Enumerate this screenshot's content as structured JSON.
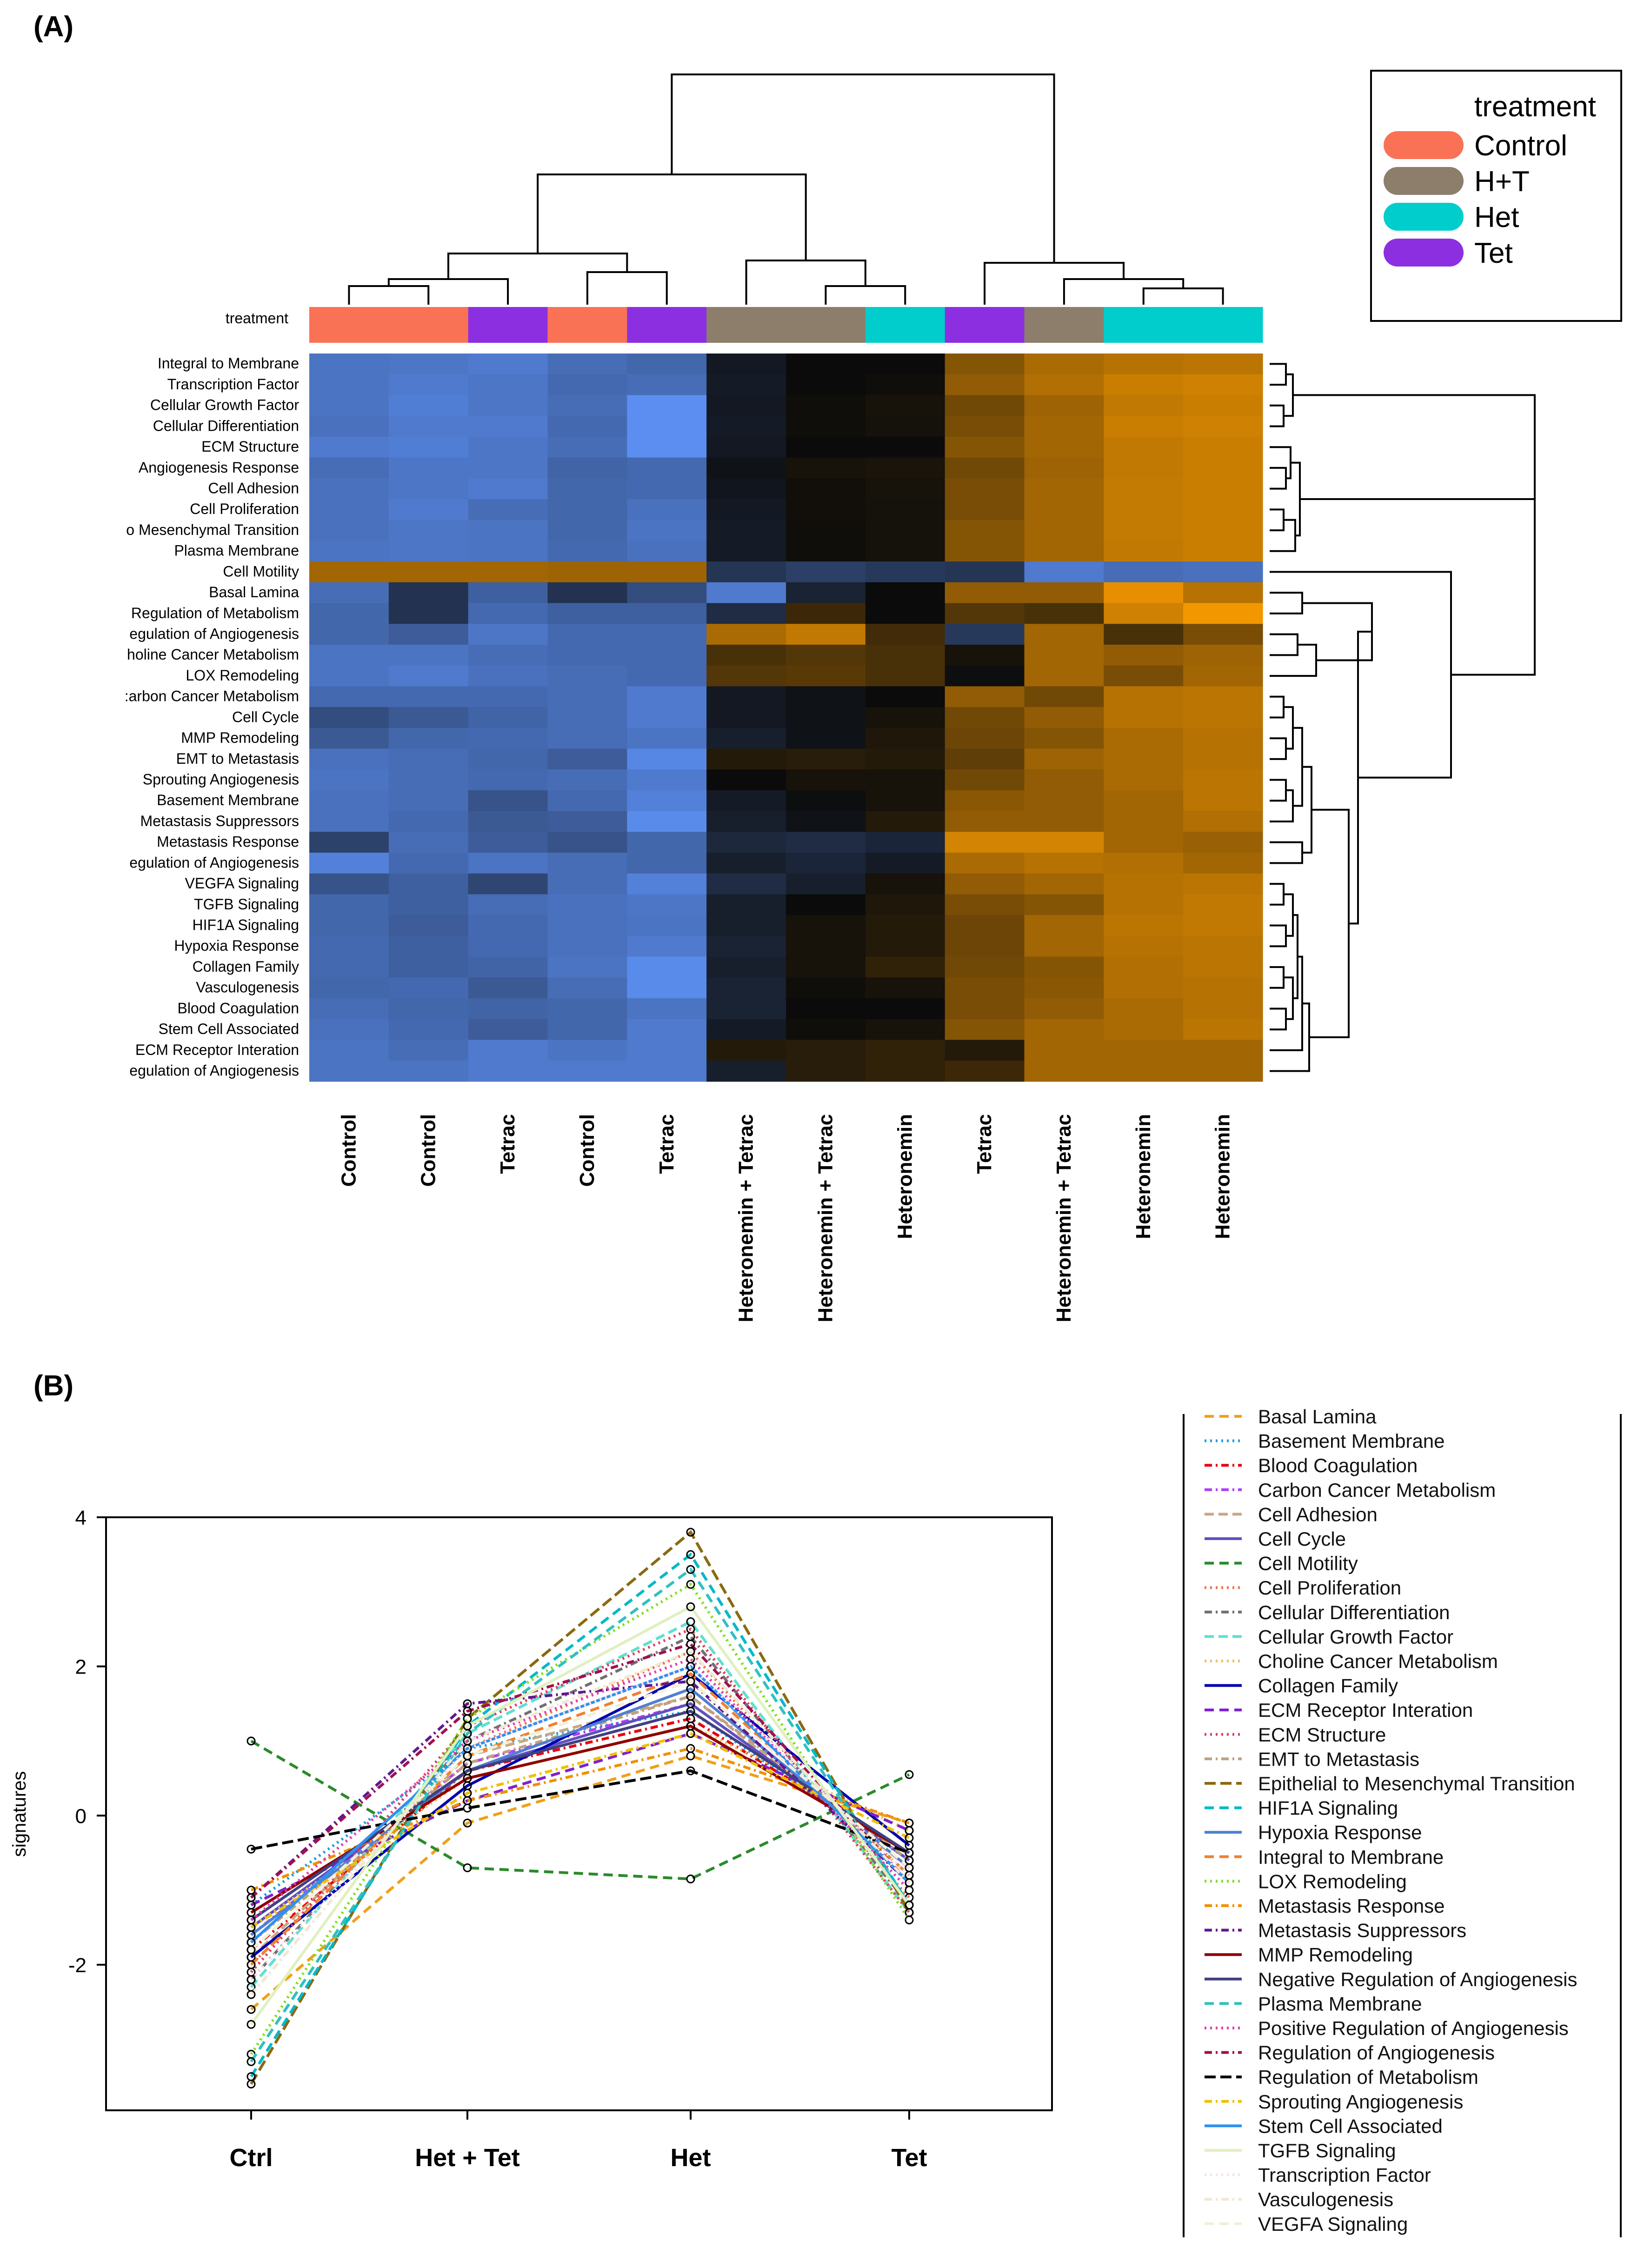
{
  "panels": {
    "a": "(A)",
    "b": "(B)"
  },
  "colors": {
    "Control": "#fa7256",
    "H+T": "#8c7e6b",
    "Het": "#02cdcd",
    "Tet": "#8c2fe0"
  },
  "heatmap_colors": {
    "low": "#5b8ef0",
    "mid": "#0b0b0b",
    "high": "#ff9e00"
  },
  "chart_data": [
    {
      "type": "heatmap",
      "annotation_label": "treatment",
      "legend": {
        "title": "treatment",
        "entries": [
          "Control",
          "H+T",
          "Het",
          "Tet"
        ]
      },
      "columns": [
        "Control",
        "Control",
        "Tetrac",
        "Control",
        "Tetrac",
        "Heteronemin + Tetrac",
        "Heteronemin + Tetrac",
        "Heteronemin",
        "Tetrac",
        "Heteronemin + Tetrac",
        "Heteronemin",
        "Heteronemin"
      ],
      "column_groups": [
        "Control",
        "Control",
        "Tet",
        "Control",
        "Tet",
        "H+T",
        "H+T",
        "Het",
        "Tet",
        "H+T",
        "Het",
        "Het"
      ],
      "rows": [
        "Integral to Membrane",
        "Transcription Factor",
        "Cellular Growth Factor",
        "Cellular Differentiation",
        "ECM Structure",
        "Angiogenesis Response",
        "Cell Adhesion",
        "Cell Proliferation",
        "o Mesenchymal Transition",
        "Plasma Membrane",
        "Cell Motility",
        "Basal Lamina",
        "Regulation of Metabolism",
        "egulation of Angiogenesis",
        "holine Cancer Metabolism",
        "LOX Remodeling",
        ":arbon Cancer Metabolism",
        "Cell Cycle",
        "MMP Remodeling",
        "EMT to Metastasis",
        "Sprouting Angiogenesis",
        "Basement Membrane",
        "Metastasis Suppressors",
        "Metastasis Response",
        "egulation of Angiogenesis",
        "VEGFA Signaling",
        "TGFB Signaling",
        "HIF1A Signaling",
        "Hypoxia Response",
        "Collagen Family",
        "Vasculogenesis",
        "Blood Coagulation",
        "Stem Cell Associated",
        "ECM Receptor Interation",
        "egulation of Angiogenesis"
      ],
      "values": [
        [
          -0.8,
          -0.82,
          -0.85,
          -0.75,
          -0.7,
          -0.1,
          0.0,
          0.0,
          0.5,
          0.65,
          0.7,
          0.72
        ],
        [
          -0.8,
          -0.85,
          -0.82,
          -0.72,
          -0.75,
          -0.12,
          0.0,
          0.02,
          0.55,
          0.68,
          0.78,
          0.8
        ],
        [
          -0.8,
          -0.88,
          -0.82,
          -0.75,
          -1.0,
          -0.1,
          0.02,
          0.05,
          0.42,
          0.6,
          0.75,
          0.78
        ],
        [
          -0.78,
          -0.85,
          -0.85,
          -0.72,
          -1.0,
          -0.12,
          0.02,
          0.04,
          0.45,
          0.62,
          0.78,
          0.8
        ],
        [
          -0.85,
          -0.88,
          -0.82,
          -0.75,
          -1.0,
          -0.1,
          0.0,
          0.0,
          0.5,
          0.62,
          0.75,
          0.78
        ],
        [
          -0.75,
          -0.82,
          -0.82,
          -0.68,
          -0.72,
          -0.05,
          0.05,
          0.06,
          0.42,
          0.6,
          0.75,
          0.78
        ],
        [
          -0.78,
          -0.82,
          -0.85,
          -0.7,
          -0.72,
          -0.08,
          0.03,
          0.05,
          0.45,
          0.62,
          0.76,
          0.78
        ],
        [
          -0.78,
          -0.85,
          -0.75,
          -0.7,
          -0.78,
          -0.1,
          0.03,
          0.04,
          0.45,
          0.62,
          0.76,
          0.78
        ],
        [
          -0.78,
          -0.82,
          -0.8,
          -0.7,
          -0.8,
          -0.12,
          0.02,
          0.04,
          0.5,
          0.62,
          0.76,
          0.78
        ],
        [
          -0.8,
          -0.82,
          -0.8,
          -0.72,
          -0.78,
          -0.12,
          0.02,
          0.04,
          0.5,
          0.62,
          0.75,
          0.78
        ],
        [
          0.62,
          0.62,
          0.62,
          0.6,
          0.6,
          -0.32,
          -0.4,
          -0.35,
          -0.32,
          -0.85,
          -0.75,
          -0.78
        ],
        [
          -0.75,
          -0.3,
          -0.65,
          -0.3,
          -0.5,
          -0.85,
          -0.18,
          0.0,
          0.55,
          0.55,
          0.9,
          0.7
        ],
        [
          -0.7,
          -0.3,
          -0.72,
          -0.65,
          -0.65,
          -0.25,
          0.2,
          0.0,
          0.3,
          0.25,
          0.8,
          0.95
        ],
        [
          -0.7,
          -0.62,
          -0.82,
          -0.72,
          -0.72,
          0.65,
          0.75,
          0.22,
          -0.35,
          0.62,
          0.25,
          0.45
        ],
        [
          -0.8,
          -0.8,
          -0.75,
          -0.72,
          -0.72,
          0.25,
          0.3,
          0.25,
          0.05,
          0.62,
          0.55,
          0.6
        ],
        [
          -0.8,
          -0.85,
          -0.78,
          -0.75,
          -0.72,
          0.3,
          0.32,
          0.25,
          -0.02,
          0.62,
          0.45,
          0.62
        ],
        [
          -0.72,
          -0.72,
          -0.72,
          -0.75,
          -0.85,
          -0.1,
          -0.05,
          0.0,
          0.55,
          0.42,
          0.7,
          0.72
        ],
        [
          -0.5,
          -0.6,
          -0.68,
          -0.75,
          -0.85,
          -0.1,
          -0.05,
          0.05,
          0.42,
          0.55,
          0.7,
          0.72
        ],
        [
          -0.6,
          -0.7,
          -0.72,
          -0.75,
          -0.8,
          -0.15,
          -0.05,
          0.08,
          0.4,
          0.5,
          0.65,
          0.7
        ],
        [
          -0.78,
          -0.75,
          -0.7,
          -0.62,
          -0.95,
          0.1,
          0.12,
          0.1,
          0.35,
          0.6,
          0.65,
          0.7
        ],
        [
          -0.8,
          -0.75,
          -0.72,
          -0.75,
          -0.85,
          0.0,
          0.05,
          0.05,
          0.42,
          0.55,
          0.65,
          0.72
        ],
        [
          -0.78,
          -0.75,
          -0.55,
          -0.72,
          -0.9,
          -0.12,
          -0.02,
          0.05,
          0.52,
          0.55,
          0.62,
          0.72
        ],
        [
          -0.78,
          -0.72,
          -0.6,
          -0.62,
          -0.98,
          -0.15,
          -0.05,
          0.1,
          0.55,
          0.55,
          0.62,
          0.68
        ],
        [
          -0.42,
          -0.75,
          -0.62,
          -0.55,
          -0.7,
          -0.22,
          -0.25,
          -0.2,
          0.82,
          0.82,
          0.62,
          0.58
        ],
        [
          -0.9,
          -0.72,
          -0.8,
          -0.75,
          -0.7,
          -0.15,
          -0.2,
          -0.12,
          0.65,
          0.7,
          0.68,
          0.62
        ],
        [
          -0.55,
          -0.65,
          -0.45,
          -0.75,
          -0.9,
          -0.25,
          -0.15,
          0.05,
          0.55,
          0.62,
          0.7,
          0.72
        ],
        [
          -0.7,
          -0.65,
          -0.75,
          -0.78,
          -0.82,
          -0.15,
          0.0,
          0.08,
          0.45,
          0.5,
          0.7,
          0.75
        ],
        [
          -0.7,
          -0.62,
          -0.72,
          -0.78,
          -0.8,
          -0.15,
          0.05,
          0.1,
          0.4,
          0.62,
          0.72,
          0.75
        ],
        [
          -0.72,
          -0.65,
          -0.72,
          -0.78,
          -0.85,
          -0.18,
          0.05,
          0.1,
          0.4,
          0.62,
          0.7,
          0.72
        ],
        [
          -0.72,
          -0.65,
          -0.68,
          -0.8,
          -0.98,
          -0.15,
          0.05,
          0.15,
          0.42,
          0.5,
          0.68,
          0.72
        ],
        [
          -0.7,
          -0.72,
          -0.6,
          -0.75,
          -0.98,
          -0.18,
          0.02,
          0.05,
          0.45,
          0.52,
          0.68,
          0.7
        ],
        [
          -0.75,
          -0.7,
          -0.68,
          -0.7,
          -0.8,
          -0.18,
          0.0,
          0.0,
          0.45,
          0.55,
          0.65,
          0.7
        ],
        [
          -0.78,
          -0.72,
          -0.62,
          -0.7,
          -0.85,
          -0.12,
          0.02,
          0.05,
          0.5,
          0.62,
          0.65,
          0.72
        ],
        [
          -0.8,
          -0.75,
          -0.85,
          -0.8,
          -0.85,
          0.1,
          0.12,
          0.15,
          0.1,
          0.62,
          0.62,
          0.62
        ],
        [
          -0.8,
          -0.8,
          -0.85,
          -0.85,
          -0.85,
          -0.15,
          0.12,
          0.15,
          0.2,
          0.62,
          0.62,
          0.62
        ]
      ]
    },
    {
      "type": "line",
      "title": "",
      "ylabel": "signatures",
      "xlabel": "",
      "categories": [
        "Ctrl",
        "Het + Tet",
        "Het",
        "Tet"
      ],
      "ylim": [
        -4,
        4
      ],
      "yticks": [
        4,
        2,
        0,
        -2
      ],
      "series": [
        {
          "name": "Basal Lamina",
          "color": "#f0a018",
          "dash": "20 12",
          "values": [
            -2.6,
            -0.1,
            0.8,
            -0.1
          ]
        },
        {
          "name": "Basement Membrane",
          "color": "#1aa0e0",
          "dash": "4 8",
          "values": [
            -1.2,
            0.9,
            1.4,
            -0.6
          ]
        },
        {
          "name": "Blood Coagulation",
          "color": "#e8000c",
          "dash": "16 8 4 8",
          "values": [
            -1.8,
            0.6,
            1.3,
            -0.5
          ]
        },
        {
          "name": "Carbon Cancer Metabolism",
          "color": "#b040f0",
          "dash": "16 8 4 8",
          "values": [
            -1.6,
            0.7,
            1.5,
            -0.6
          ]
        },
        {
          "name": "Cell Adhesion",
          "color": "#c8a880",
          "dash": "20 10",
          "values": [
            -1.9,
            0.8,
            1.6,
            -0.7
          ]
        },
        {
          "name": "Cell Cycle",
          "color": "#6050c0",
          "dash": "",
          "values": [
            -1.5,
            0.6,
            1.5,
            -0.6
          ]
        },
        {
          "name": "Cell Motility",
          "color": "#2a8a2a",
          "dash": "20 12",
          "values": [
            1.0,
            -0.7,
            -0.85,
            0.55
          ]
        },
        {
          "name": "Cell Proliferation",
          "color": "#f07050",
          "dash": "4 8",
          "values": [
            -2.0,
            0.9,
            2.2,
            -1.1
          ]
        },
        {
          "name": "Cellular Differentiation",
          "color": "#707070",
          "dash": "16 8 4 8",
          "values": [
            -2.2,
            1.0,
            2.4,
            -1.2
          ]
        },
        {
          "name": "Cellular Growth Factor",
          "color": "#60e0d0",
          "dash": "20 10",
          "values": [
            -2.3,
            1.1,
            2.6,
            -1.3
          ]
        },
        {
          "name": "Choline Cancer Metabolism",
          "color": "#f0c060",
          "dash": "4 8",
          "values": [
            -1.5,
            0.5,
            1.2,
            -0.2
          ]
        },
        {
          "name": "Collagen Family",
          "color": "#0000b0",
          "dash": "",
          "values": [
            -1.9,
            0.4,
            1.9,
            -0.4
          ]
        },
        {
          "name": "ECM Receptor Interation",
          "color": "#8020d0",
          "dash": "20 12",
          "values": [
            -1.2,
            0.2,
            1.1,
            -0.2
          ]
        },
        {
          "name": "ECM Structure",
          "color": "#e04060",
          "dash": "4 8",
          "values": [
            -2.1,
            1.2,
            2.5,
            -1.3
          ]
        },
        {
          "name": "EMT to Metastasis",
          "color": "#c0a080",
          "dash": "16 8 4 8",
          "values": [
            -1.7,
            0.7,
            1.6,
            -0.6
          ]
        },
        {
          "name": "Epithelial to Mesenchymal Transition",
          "color": "#8a6a10",
          "dash": "24 10",
          "values": [
            -3.6,
            1.3,
            3.8,
            -1.3
          ]
        },
        {
          "name": "HIF1A Signaling",
          "color": "#00b8c8",
          "dash": "20 12",
          "values": [
            -3.5,
            1.2,
            3.5,
            -1.2
          ]
        },
        {
          "name": "Hypoxia Response",
          "color": "#5080d0",
          "dash": "",
          "values": [
            -1.6,
            0.6,
            1.7,
            -0.7
          ]
        },
        {
          "name": "Integral to Membrane",
          "color": "#f08030",
          "dash": "20 12",
          "values": [
            -2.0,
            0.8,
            1.9,
            -0.8
          ]
        },
        {
          "name": "LOX Remodeling",
          "color": "#80e020",
          "dash": "4 8",
          "values": [
            -3.2,
            1.3,
            3.1,
            -1.4
          ]
        },
        {
          "name": "Metastasis Response",
          "color": "#f09000",
          "dash": "16 8 4 8",
          "values": [
            -1.0,
            0.2,
            0.9,
            -0.1
          ]
        },
        {
          "name": "Metastasis Suppressors",
          "color": "#601890",
          "dash": "16 8 4 8",
          "values": [
            -1.1,
            1.5,
            1.8,
            -0.9
          ]
        },
        {
          "name": "MMP Remodeling",
          "color": "#900000",
          "dash": "",
          "values": [
            -1.3,
            0.5,
            1.2,
            -0.5
          ]
        },
        {
          "name": "Negative Regulation of Angiogenesis",
          "color": "#404080",
          "dash": "",
          "values": [
            -1.4,
            0.6,
            1.4,
            -0.5
          ]
        },
        {
          "name": "Plasma Membrane",
          "color": "#30c0c0",
          "dash": "20 12",
          "values": [
            -3.3,
            1.1,
            3.3,
            -1.2
          ]
        },
        {
          "name": "Positive Regulation of Angiogenesis",
          "color": "#e040b0",
          "dash": "4 8",
          "values": [
            -1.4,
            1.0,
            2.1,
            -1.0
          ]
        },
        {
          "name": "Regulation of Angiogenesis",
          "color": "#a01050",
          "dash": "16 8 4 8",
          "values": [
            -1.1,
            1.4,
            2.3,
            -0.9
          ]
        },
        {
          "name": "Regulation of Metabolism",
          "color": "#000000",
          "dash": "24 10",
          "values": [
            -0.45,
            0.1,
            0.6,
            -0.5
          ]
        },
        {
          "name": "Sprouting Angiogenesis",
          "color": "#f0c000",
          "dash": "16 8 4 8",
          "values": [
            -1.5,
            0.3,
            1.1,
            -0.3
          ]
        },
        {
          "name": "Stem Cell Associated",
          "color": "#3090f0",
          "dash": "",
          "values": [
            -1.7,
            0.9,
            2.0,
            -0.9
          ]
        },
        {
          "name": "TGFB Signaling",
          "color": "#e0f0c0",
          "dash": "",
          "values": [
            -2.8,
            1.2,
            2.8,
            -1.2
          ]
        },
        {
          "name": "Transcription Factor",
          "color": "#f8e0e8",
          "dash": "4 8",
          "values": [
            -2.2,
            0.9,
            2.0,
            -0.8
          ]
        },
        {
          "name": "Vasculogenesis",
          "color": "#f0e8d0",
          "dash": "16 8 4 8",
          "values": [
            -2.4,
            1.0,
            2.2,
            -0.9
          ]
        },
        {
          "name": "VEGFA Signaling",
          "color": "#f0f0d8",
          "dash": "20 12",
          "values": [
            -1.8,
            0.8,
            1.8,
            -0.7
          ]
        }
      ]
    }
  ]
}
